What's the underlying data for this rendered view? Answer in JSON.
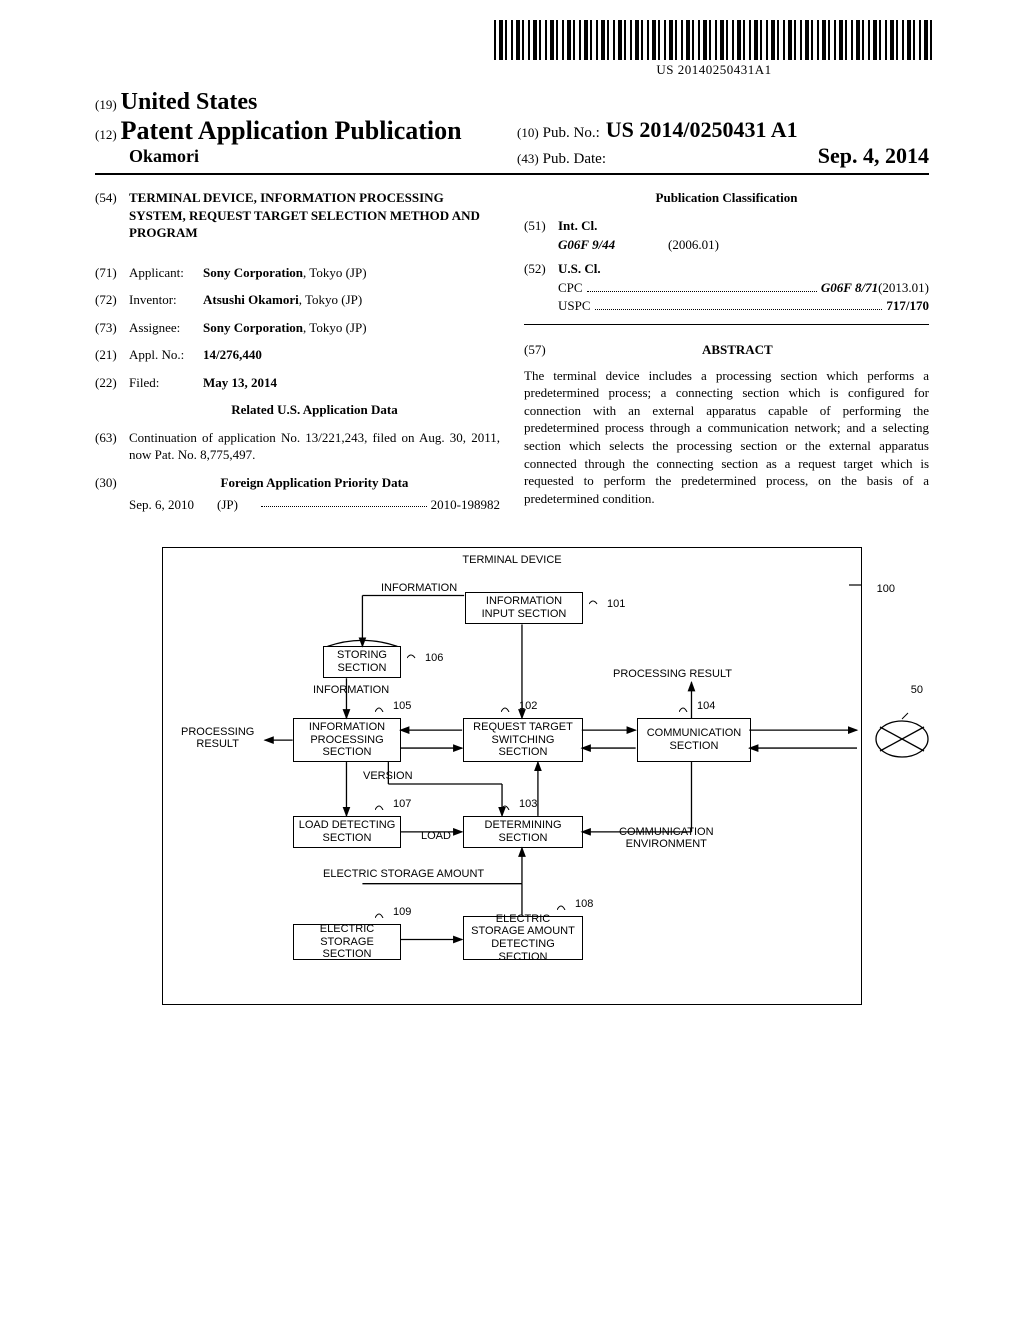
{
  "barcode": {
    "text": "US 20140250431A1"
  },
  "header": {
    "country_code": "(19)",
    "country": "United States",
    "pub_code": "(12)",
    "pub_type": "Patent Application Publication",
    "inventor_line": "Okamori",
    "pubno_code": "(10)",
    "pubno_label": "Pub. No.:",
    "pubno": "US 2014/0250431 A1",
    "pubdate_code": "(43)",
    "pubdate_label": "Pub. Date:",
    "pubdate": "Sep. 4, 2014"
  },
  "left": {
    "title_code": "(54)",
    "title": "TERMINAL DEVICE, INFORMATION PROCESSING SYSTEM, REQUEST TARGET SELECTION METHOD AND PROGRAM",
    "applicant_code": "(71)",
    "applicant_label": "Applicant:",
    "applicant_name": "Sony Corporation",
    "applicant_loc": ", Tokyo (JP)",
    "inventor_code": "(72)",
    "inventor_label": "Inventor:",
    "inventor_name": "Atsushi Okamori",
    "inventor_loc": ", Tokyo (JP)",
    "assignee_code": "(73)",
    "assignee_label": "Assignee:",
    "assignee_name": "Sony Corporation",
    "assignee_loc": ", Tokyo (JP)",
    "applno_code": "(21)",
    "applno_label": "Appl. No.:",
    "applno": "14/276,440",
    "filed_code": "(22)",
    "filed_label": "Filed:",
    "filed": "May 13, 2014",
    "related_heading": "Related U.S. Application Data",
    "continuation_code": "(63)",
    "continuation": "Continuation of application No. 13/221,243, filed on Aug. 30, 2011, now Pat. No. 8,775,497.",
    "foreign_code": "(30)",
    "foreign_heading": "Foreign Application Priority Data",
    "foreign_date": "Sep. 6, 2010",
    "foreign_country": "(JP)",
    "foreign_no": "2010-198982"
  },
  "right": {
    "class_heading": "Publication Classification",
    "intcl_code": "(51)",
    "intcl_label": "Int. Cl.",
    "intcl_class": "G06F 9/44",
    "intcl_date": "(2006.01)",
    "uscl_code": "(52)",
    "uscl_label": "U.S. Cl.",
    "cpc_label": "CPC",
    "cpc_value": "G06F 8/71",
    "cpc_date": " (2013.01)",
    "uspc_label": "USPC",
    "uspc_value": "717/170",
    "abstract_code": "(57)",
    "abstract_heading": "ABSTRACT",
    "abstract": "The terminal device includes a processing section which performs a predetermined process; a connecting section which is configured for connection with an external apparatus capable of performing the predetermined process through a communication network; and a selecting section which selects the processing section or the external apparatus connected through the connecting section as a request target which is requested to perform the predetermined process, on the basis of a predetermined condition."
  },
  "diagram": {
    "title": "TERMINAL DEVICE",
    "ref100": "100",
    "ref50": "50",
    "boxes": {
      "info_input": "INFORMATION\nINPUT SECTION",
      "storing": "STORING\nSECTION",
      "info_proc": "INFORMATION\nPROCESSING\nSECTION",
      "req_target": "REQUEST TARGET\nSWITCHING\nSECTION",
      "comm": "COMMUNICATION\nSECTION",
      "load_detect": "LOAD DETECTING\nSECTION",
      "determining": "DETERMINING\nSECTION",
      "elec_storage": "ELECTRIC\nSTORAGE SECTION",
      "elec_detect": "ELECTRIC\nSTORAGE AMOUNT\nDETECTING SECTION"
    },
    "refs": {
      "r101": "101",
      "r102": "102",
      "r103": "103",
      "r104": "104",
      "r105": "105",
      "r106": "106",
      "r107": "107",
      "r108": "108",
      "r109": "109"
    },
    "labels": {
      "information_top": "INFORMATION",
      "information_left": "INFORMATION",
      "proc_result_left": "PROCESSING\nRESULT",
      "proc_result_top": "PROCESSING RESULT",
      "version": "VERSION",
      "load": "LOAD",
      "comm_env": "COMMUNICATION\nENVIRONMENT",
      "elec_amount": "ELECTRIC STORAGE AMOUNT"
    }
  }
}
